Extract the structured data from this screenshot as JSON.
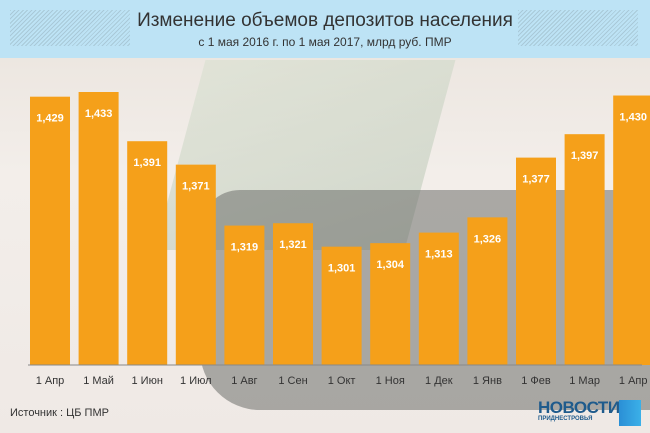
{
  "chart_data": {
    "type": "bar",
    "title": "Изменение объемов депозитов населения",
    "subtitle": "с 1 мая 2016 г. по 1 мая 2017, млрд руб. ПМР",
    "categories": [
      "1 Апр",
      "1 Май",
      "1 Июн",
      "1 Июл",
      "1 Авг",
      "1 Сен",
      "1 Окт",
      "1 Ноя",
      "1 Дек",
      "1 Янв",
      "1 Фев",
      "1 Мар",
      "1 Апр"
    ],
    "values": [
      1.429,
      1.433,
      1.391,
      1.371,
      1.319,
      1.321,
      1.301,
      1.304,
      1.313,
      1.326,
      1.377,
      1.397,
      1.43
    ],
    "labels": [
      "1,429",
      "1,433",
      "1,391",
      "1,371",
      "1,319",
      "1,321",
      "1,301",
      "1,304",
      "1,313",
      "1,326",
      "1,377",
      "1,397",
      "1,430"
    ],
    "ylim": [
      1.2,
      1.45
    ],
    "xlabel": "",
    "ylabel": "",
    "bar_color": "#f5a01a"
  },
  "footer": {
    "source": "Источник : ЦБ ПМР",
    "logo_main": "НОВОСТИ",
    "logo_sub": "ПРИДНЕСТРОВЬЯ"
  }
}
